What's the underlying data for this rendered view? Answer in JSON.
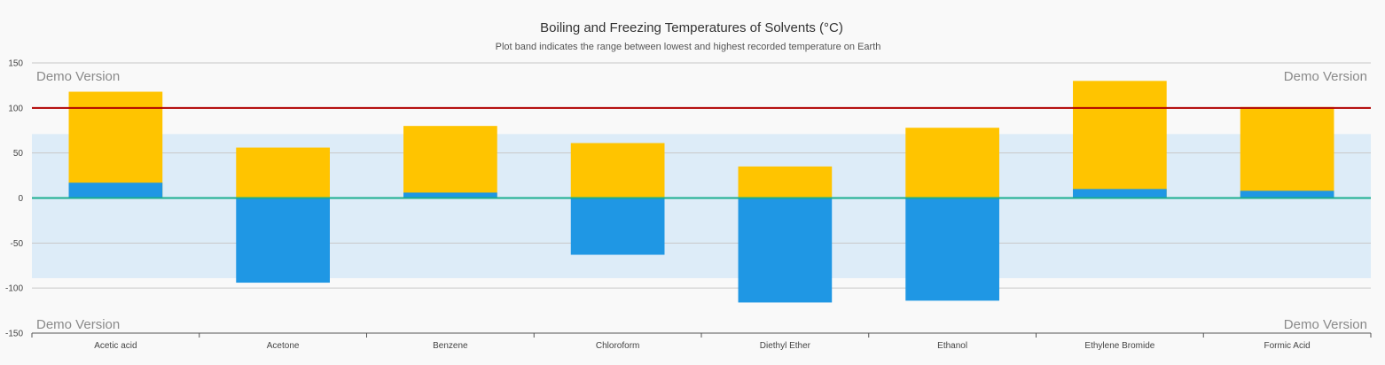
{
  "chart_data": {
    "type": "bar",
    "title": "Boiling and Freezing Temperatures of Solvents (°C)",
    "subtitle": "Plot band indicates the range between lowest and highest recorded temperature on Earth",
    "xlabel": "",
    "ylabel": "",
    "categories": [
      "Acetic acid",
      "Acetone",
      "Benzene",
      "Chloroform",
      "Diethyl Ether",
      "Ethanol",
      "Ethylene Bromide",
      "Formic Acid"
    ],
    "series": [
      {
        "color": "#ffc400",
        "values": [
          118,
          56,
          80,
          61,
          35,
          78,
          130,
          101
        ]
      },
      {
        "color": "#1f97e4",
        "values": [
          17,
          -94,
          6,
          -63,
          -116,
          -114,
          10,
          8
        ]
      }
    ],
    "ylim": [
      -150,
      150
    ],
    "yticks": [
      -150,
      -100,
      -50,
      0,
      50,
      100,
      150
    ],
    "plot_band": {
      "from": -89,
      "to": 71,
      "color": "#ddecf8"
    },
    "reference_lines": [
      {
        "value": 100,
        "color": "#b00000"
      },
      {
        "value": 0,
        "color": "#1aae8f"
      }
    ],
    "grid": true,
    "legend": "none",
    "watermark": "Demo Version"
  }
}
